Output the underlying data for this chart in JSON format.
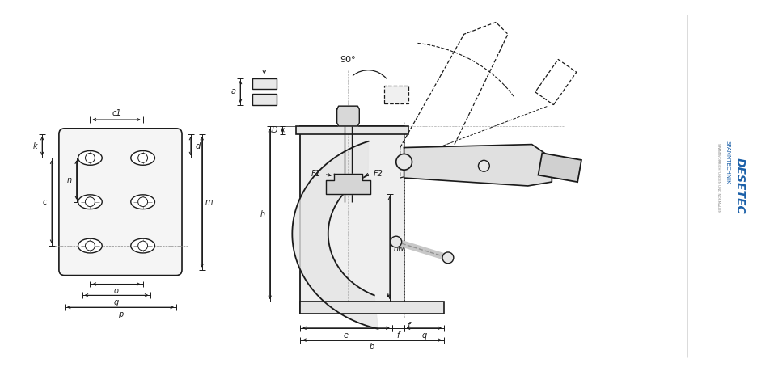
{
  "bg_color": "#ffffff",
  "line_color": "#1a1a1a",
  "dim_color": "#1a1a1a",
  "blue_color": "#1a5fa8",
  "gray_light": "#e8e8e8",
  "gray_mid": "#d0d0d0",
  "gray_dark": "#aaaaaa",
  "brand_desetec": "DESETEC",
  "brand_sub": "SPANNTECHNIK",
  "brand_sub2": "SPANNVORRICHTUNGEN UND NORMALIEN"
}
